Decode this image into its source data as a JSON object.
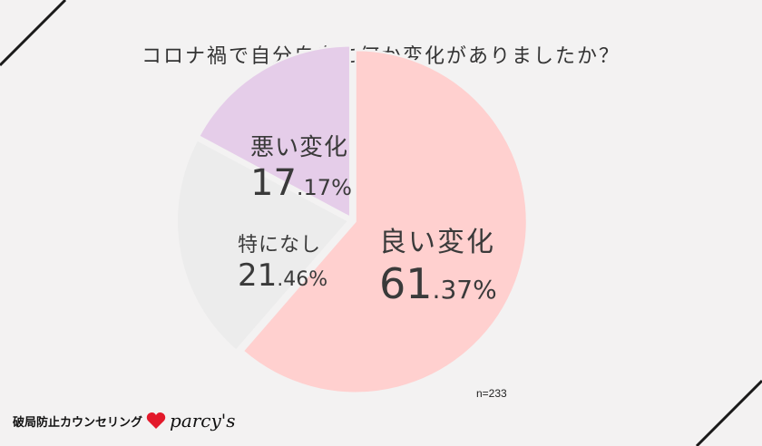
{
  "title": "コロナ禍で自分自身に何か変化がありましたか？",
  "note": "n=233",
  "brand": {
    "text": "破局防止カウンセリング",
    "logo": "parcy's",
    "heart_color": "#e3192b"
  },
  "chart_data": {
    "type": "pie",
    "title": "コロナ禍で自分自身に何か変化がありましたか？",
    "slices": [
      {
        "label": "良い変化",
        "value": 61.37,
        "int": "61",
        "dec": ".37%",
        "color": "#ffd0cf"
      },
      {
        "label": "特になし",
        "value": 21.46,
        "int": "21",
        "dec": ".46%",
        "color": "#ececec"
      },
      {
        "label": "悪い変化",
        "value": 17.17,
        "int": "17",
        "dec": ".17%",
        "color": "#e5cde9"
      }
    ],
    "start": "12 o'clock",
    "direction": "clockwise",
    "legend": "none",
    "sample_size": 233
  }
}
